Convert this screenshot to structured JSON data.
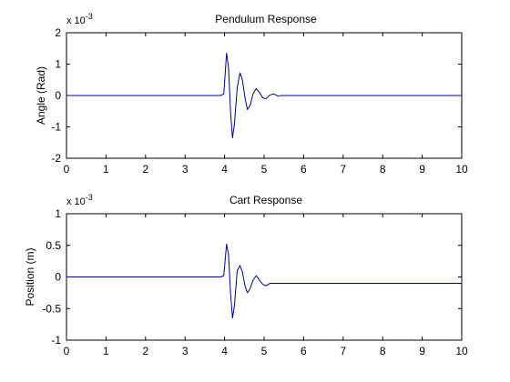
{
  "chart_data": [
    {
      "type": "line",
      "title": "Pendulum Response",
      "xlabel": "",
      "ylabel": "Angle (Rad)",
      "xlim": [
        0,
        10
      ],
      "ylim": [
        -2,
        2
      ],
      "x_ticks": [
        0,
        1,
        2,
        3,
        4,
        5,
        6,
        7,
        8,
        9,
        10
      ],
      "y_ticks": [
        -2,
        -1,
        0,
        1,
        2
      ],
      "y_multiplier_base": "x 10",
      "y_multiplier_exp": "-3",
      "grid": false,
      "line_color": "#00008b",
      "x": [
        0,
        3.9,
        3.98,
        4.05,
        4.1,
        4.15,
        4.2,
        4.25,
        4.32,
        4.39,
        4.45,
        4.52,
        4.58,
        4.65,
        4.72,
        4.8,
        4.88,
        4.97,
        5.05,
        5.15,
        5.25,
        5.35,
        5.45,
        6,
        10
      ],
      "series": [
        {
          "values": [
            0,
            0,
            0.05,
            1.35,
            0.9,
            -0.5,
            -1.35,
            -0.9,
            0.25,
            0.72,
            0.5,
            -0.1,
            -0.45,
            -0.3,
            0.05,
            0.22,
            0.1,
            -0.08,
            -0.1,
            0.02,
            0.05,
            -0.02,
            0,
            0,
            0
          ]
        }
      ]
    },
    {
      "type": "line",
      "title": "Cart Response",
      "xlabel": "",
      "ylabel": "Position (m)",
      "xlim": [
        0,
        10
      ],
      "ylim": [
        -1,
        1
      ],
      "x_ticks": [
        0,
        1,
        2,
        3,
        4,
        5,
        6,
        7,
        8,
        9,
        10
      ],
      "y_ticks": [
        -1,
        -0.5,
        0,
        0.5,
        1
      ],
      "y_multiplier_base": "x 10",
      "y_multiplier_exp": "-3",
      "grid": false,
      "line_color": "#00008b",
      "x": [
        0,
        3.9,
        3.98,
        4.05,
        4.1,
        4.15,
        4.2,
        4.25,
        4.32,
        4.39,
        4.45,
        4.52,
        4.58,
        4.65,
        4.72,
        4.8,
        4.88,
        4.97,
        5.05,
        5.15,
        5.25,
        5.4,
        6,
        10
      ],
      "series": [
        {
          "values": [
            0,
            0,
            0.02,
            0.52,
            0.35,
            -0.25,
            -0.65,
            -0.45,
            0.1,
            0.18,
            0.08,
            -0.15,
            -0.25,
            -0.18,
            -0.05,
            0.02,
            -0.05,
            -0.12,
            -0.14,
            -0.1,
            -0.1,
            -0.1,
            -0.1,
            -0.1
          ]
        }
      ]
    }
  ]
}
